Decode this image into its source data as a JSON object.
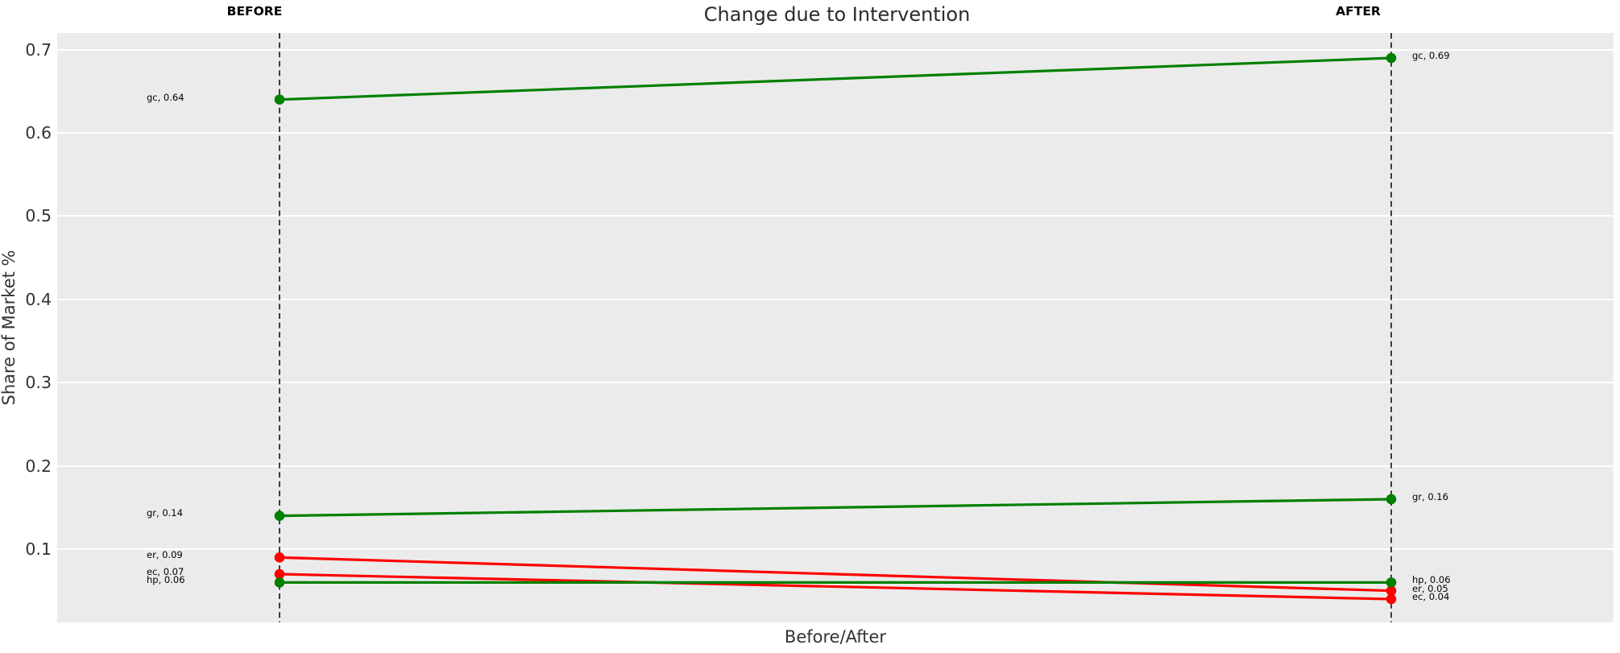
{
  "colors": {
    "green": "#008000",
    "red": "#ff0000",
    "plot_bg": "#ebebeb",
    "grid": "#ffffff",
    "dashed_line": "#111111",
    "tick_text": "#333333",
    "title_text": "#2b2b2b",
    "label_text": "#000000"
  },
  "chart_data": {
    "type": "line",
    "subtype": "slope-chart",
    "title": "Change due to Intervention",
    "xlabel": "Before/After",
    "ylabel": "Share of Market %",
    "x_categories": [
      "BEFORE",
      "AFTER"
    ],
    "x_positions": [
      0,
      1
    ],
    "xlim": [
      -0.2,
      1.2
    ],
    "ylim": [
      0.012,
      0.72
    ],
    "yticks": [
      0.1,
      0.2,
      0.3,
      0.4,
      0.5,
      0.6,
      0.7
    ],
    "grid": true,
    "legend": false,
    "series": [
      {
        "name": "gc",
        "color": "green",
        "before": 0.64,
        "after": 0.69,
        "label_before": "gc, 0.64",
        "label_after": "gc, 0.69"
      },
      {
        "name": "gr",
        "color": "green",
        "before": 0.14,
        "after": 0.16,
        "label_before": "gr, 0.14",
        "label_after": "gr, 0.16"
      },
      {
        "name": "er",
        "color": "red",
        "before": 0.09,
        "after": 0.05,
        "label_before": "er, 0.09",
        "label_after": "er, 0.05"
      },
      {
        "name": "ec",
        "color": "red",
        "before": 0.07,
        "after": 0.04,
        "label_before": "ec, 0.07",
        "label_after": "ec, 0.04"
      },
      {
        "name": "hp",
        "color": "green",
        "before": 0.06,
        "after": 0.06,
        "label_before": "hp, 0.06",
        "label_after": "hp, 0.06"
      }
    ]
  }
}
